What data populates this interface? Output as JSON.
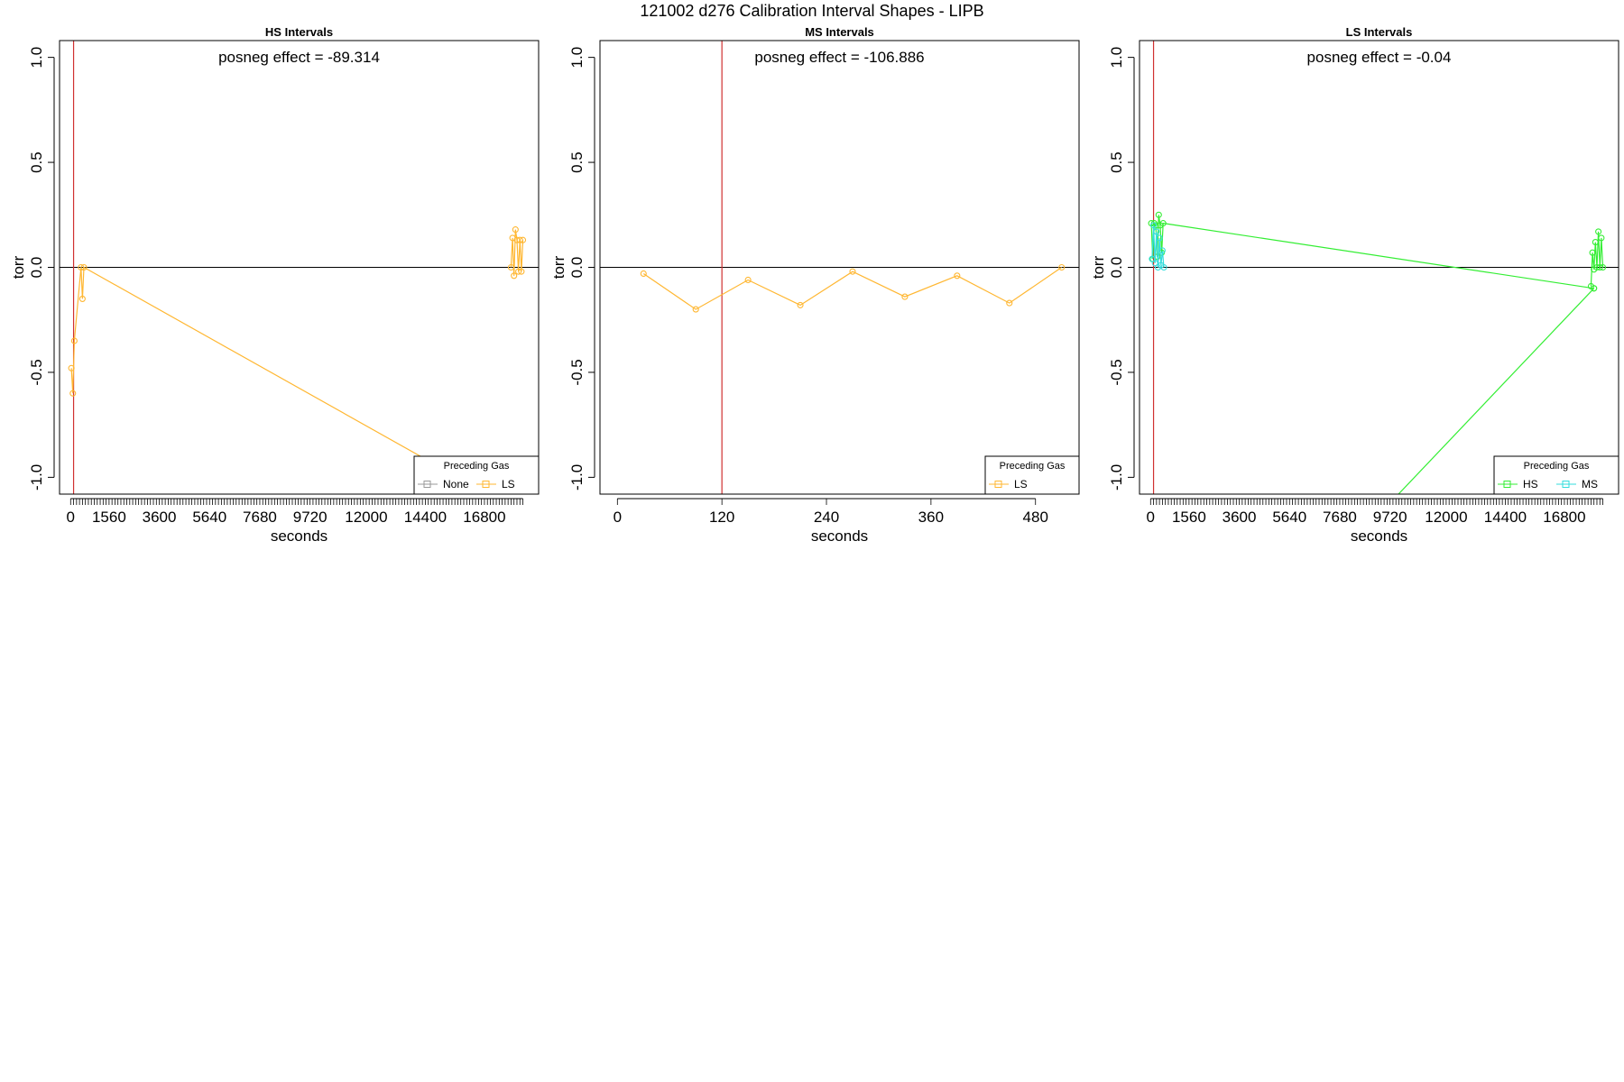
{
  "page_title": "121002   d276   Calibration Interval Shapes - LIPB",
  "chart_data": [
    {
      "type": "line",
      "title": "HS Intervals",
      "annotation": "posneg effect = -89.314",
      "xlabel": "seconds",
      "ylabel": "torr",
      "xlim": [
        -450,
        19000
      ],
      "ylim": [
        -1.08,
        1.08
      ],
      "x_tick_step": 120,
      "x_tick_labels": [
        0,
        1560,
        3600,
        5640,
        7680,
        9720,
        12000,
        14400,
        16800
      ],
      "y_ticks": [
        -1.0,
        -0.5,
        0.0,
        0.5,
        1.0
      ],
      "reference_hline": 0.0,
      "reference_vline": 120,
      "grid": false,
      "legend_position": "bottom-right",
      "legend_title": "Preceding Gas",
      "legend_entries": [
        {
          "label": "None",
          "color": "#999999"
        },
        {
          "label": "LS",
          "color": "#ffb732"
        }
      ],
      "series": [
        {
          "name": "LS",
          "color": "#ffb732",
          "x": [
            30,
            90,
            150,
            420,
            480,
            540,
            18000
          ],
          "y": [
            -0.48,
            -0.6,
            -0.35,
            0.0,
            -0.15,
            0.0,
            -1.15
          ]
        },
        {
          "name": "LS",
          "color": "#ffb732",
          "x": [
            17880,
            17940,
            18000,
            18060,
            18120,
            18180,
            18240,
            18300,
            18360
          ],
          "y": [
            0.0,
            0.14,
            -0.04,
            0.18,
            0.13,
            -0.02,
            0.13,
            -0.02,
            0.13
          ]
        }
      ]
    },
    {
      "type": "line",
      "title": "MS Intervals",
      "annotation": "posneg effect = -106.886",
      "xlabel": "seconds",
      "ylabel": "torr",
      "xlim": [
        -20,
        530
      ],
      "ylim": [
        -1.08,
        1.08
      ],
      "x_tick_step": 120,
      "x_tick_labels": [
        0,
        120,
        240,
        360,
        480
      ],
      "y_ticks": [
        -1.0,
        -0.5,
        0.0,
        0.5,
        1.0
      ],
      "reference_hline": 0.0,
      "reference_vline": 120,
      "grid": false,
      "legend_position": "bottom-right",
      "legend_title": "Preceding Gas",
      "legend_entries": [
        {
          "label": "LS",
          "color": "#ffb732"
        }
      ],
      "series": [
        {
          "name": "LS",
          "color": "#ffb732",
          "x": [
            30,
            90,
            150,
            210,
            270,
            330,
            390,
            450,
            510
          ],
          "y": [
            -0.03,
            -0.2,
            -0.06,
            -0.18,
            -0.02,
            -0.14,
            -0.04,
            -0.17,
            0.0
          ]
        }
      ]
    },
    {
      "type": "line",
      "title": "LS Intervals",
      "annotation": "posneg effect = -0.04",
      "xlabel": "seconds",
      "ylabel": "torr",
      "xlim": [
        -450,
        19000
      ],
      "ylim": [
        -1.08,
        1.08
      ],
      "x_tick_step": 120,
      "x_tick_labels": [
        0,
        1560,
        3600,
        5640,
        7680,
        9720,
        12000,
        14400,
        16800
      ],
      "y_ticks": [
        -1.0,
        -0.5,
        0.0,
        0.5,
        1.0
      ],
      "reference_hline": 0.0,
      "reference_vline": 120,
      "grid": false,
      "legend_position": "bottom-right",
      "legend_title": "Preceding Gas",
      "legend_entries": [
        {
          "label": "HS",
          "color": "#33ee33"
        },
        {
          "label": "MS",
          "color": "#33dddd"
        }
      ],
      "series": [
        {
          "name": "HS",
          "color": "#33ee33",
          "x": [
            30,
            90,
            150,
            210,
            270,
            330,
            390,
            450,
            510,
            18000
          ],
          "y": [
            0.21,
            0.04,
            0.21,
            0.2,
            0.05,
            0.25,
            0.2,
            0.07,
            0.21,
            -0.1
          ]
        },
        {
          "name": "HS",
          "color": "#33ee33",
          "x": [
            9500,
            18000
          ],
          "y": [
            -1.15,
            -0.1
          ]
        },
        {
          "name": "HS",
          "color": "#33ee33",
          "x": [
            17880,
            17940,
            18000,
            18060,
            18120,
            18180,
            18240,
            18300,
            18360
          ],
          "y": [
            -0.09,
            0.07,
            -0.01,
            0.12,
            0.0,
            0.17,
            0.0,
            0.14,
            0.0
          ]
        },
        {
          "name": "MS",
          "color": "#33dddd",
          "x": [
            60,
            120,
            180,
            240,
            300,
            360,
            420,
            480,
            540
          ],
          "y": [
            0.04,
            0.2,
            0.02,
            0.17,
            0.0,
            0.14,
            0.01,
            0.08,
            0.0
          ]
        }
      ]
    }
  ]
}
